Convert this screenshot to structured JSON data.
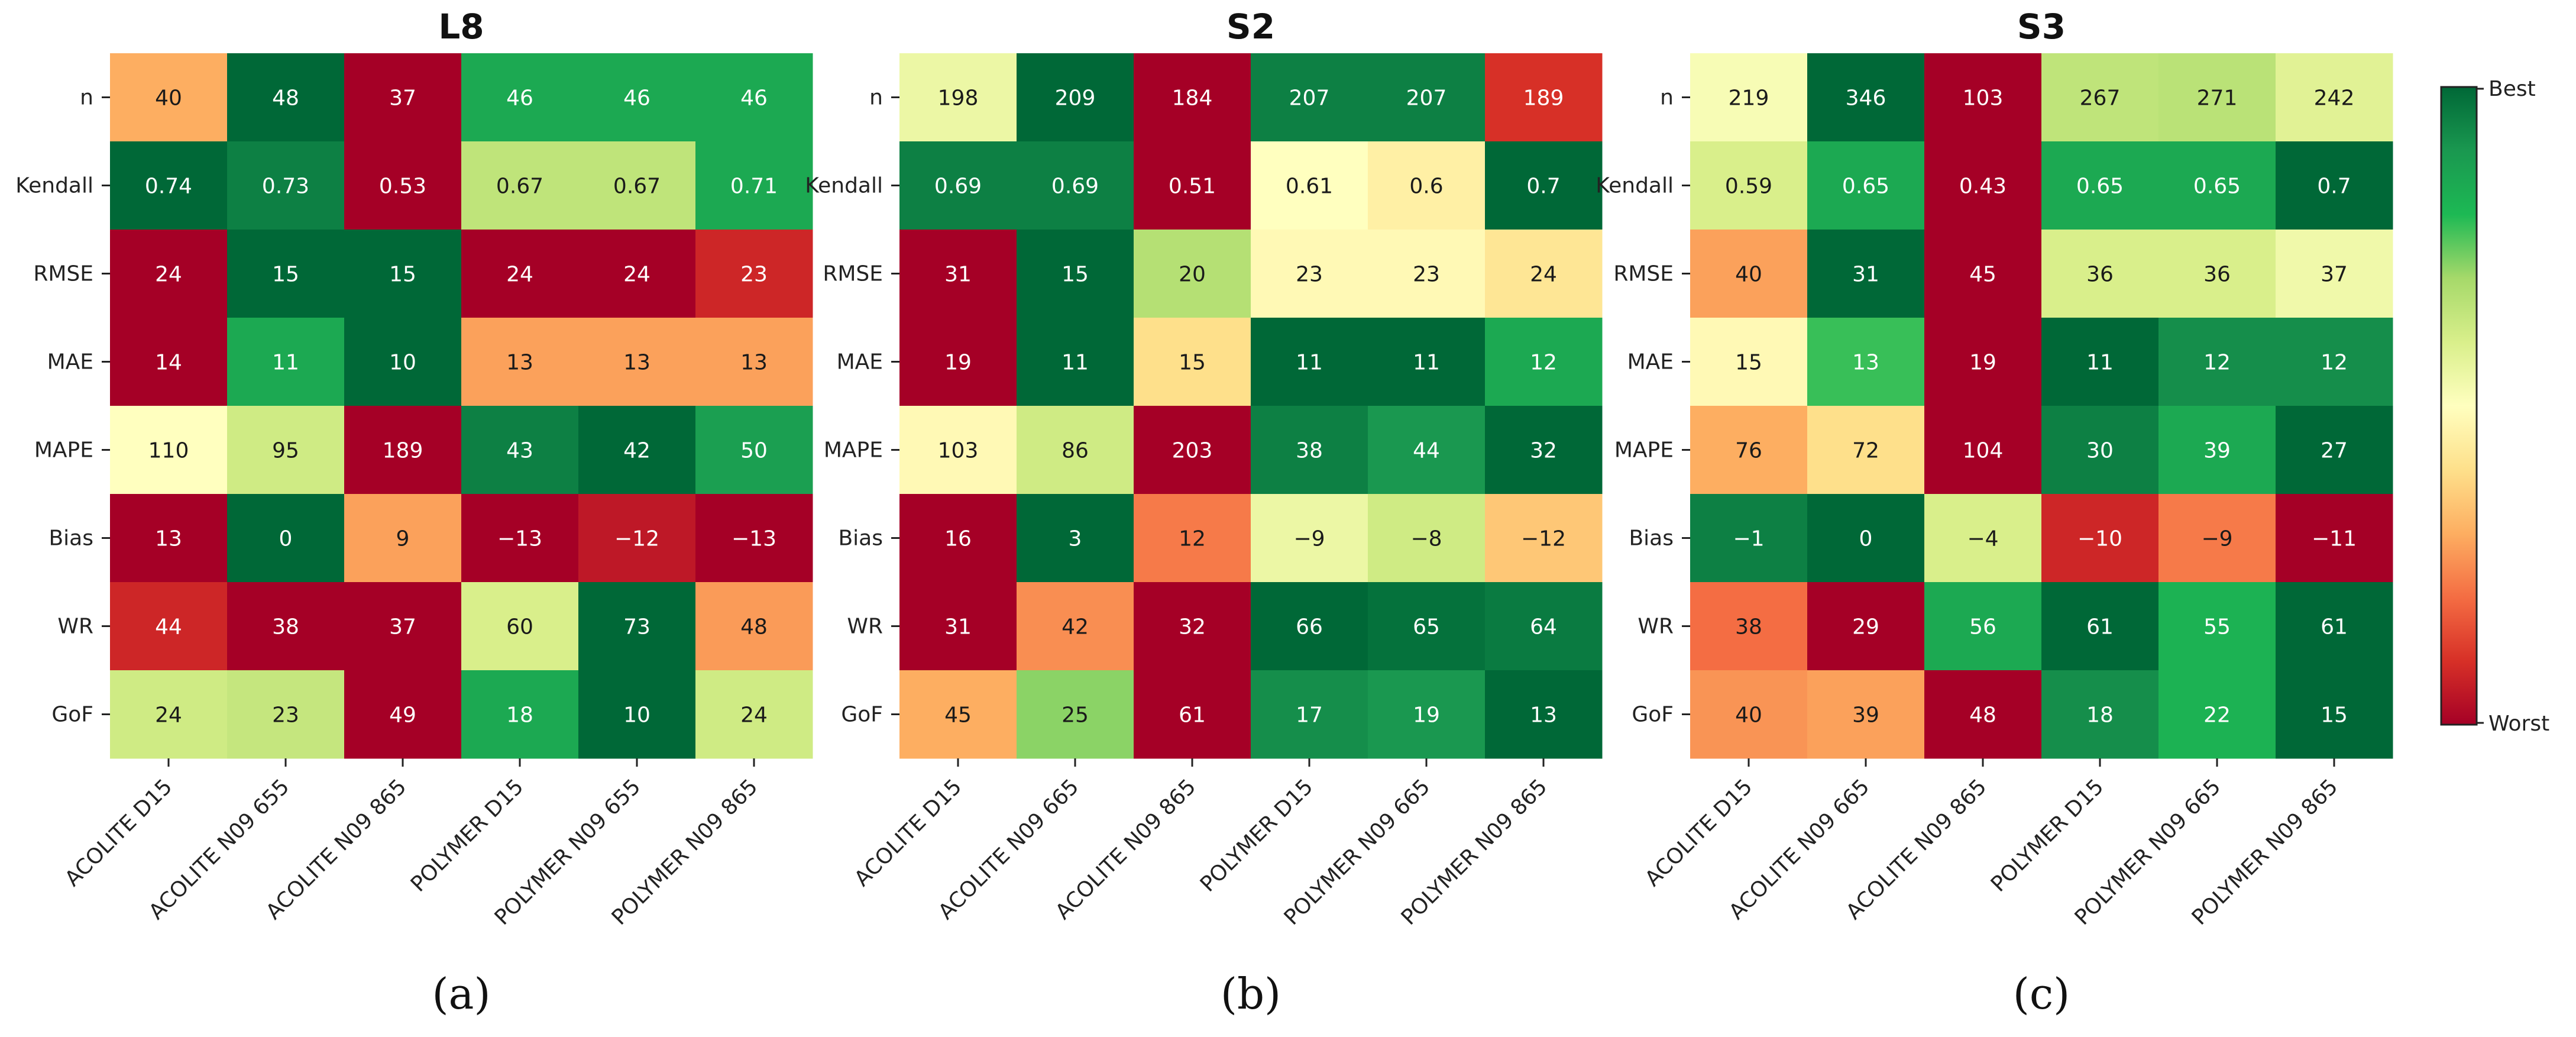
{
  "colorbar": {
    "top_label": "Best",
    "bottom_label": "Worst"
  },
  "chart_data": [
    {
      "type": "heatmap",
      "title": "L8",
      "panel_label": "(a)",
      "rows": [
        "n",
        "Kendall",
        "RMSE",
        "MAE",
        "MAPE",
        "Bias",
        "WR",
        "GoF"
      ],
      "columns": [
        "ACOLITE D15",
        "ACOLITE N09 655",
        "ACOLITE N09 865",
        "POLYMER D15",
        "POLYMER N09 655",
        "POLYMER N09 865"
      ],
      "values": [
        [
          "40",
          "48",
          "37",
          "46",
          "46",
          "46"
        ],
        [
          "0.74",
          "0.73",
          "0.53",
          "0.67",
          "0.67",
          "0.71"
        ],
        [
          "24",
          "15",
          "15",
          "24",
          "24",
          "23"
        ],
        [
          "14",
          "11",
          "10",
          "13",
          "13",
          "13"
        ],
        [
          "110",
          "95",
          "189",
          "43",
          "42",
          "50"
        ],
        [
          "13",
          "0",
          "9",
          "−13",
          "−12",
          "−13"
        ],
        [
          "44",
          "38",
          "37",
          "60",
          "73",
          "48"
        ],
        [
          "24",
          "23",
          "49",
          "18",
          "10",
          "24"
        ]
      ],
      "scores": [
        [
          0.3,
          1.0,
          0.0,
          0.85,
          0.85,
          0.85
        ],
        [
          1.0,
          0.95,
          0.0,
          0.65,
          0.65,
          0.85
        ],
        [
          0.0,
          1.0,
          1.0,
          0.0,
          0.0,
          0.08
        ],
        [
          0.0,
          0.85,
          1.0,
          0.28,
          0.28,
          0.28
        ],
        [
          0.5,
          0.62,
          0.0,
          0.95,
          1.0,
          0.88
        ],
        [
          0.0,
          1.0,
          0.28,
          0.0,
          0.05,
          0.0
        ],
        [
          0.08,
          0.0,
          0.0,
          0.6,
          1.0,
          0.27
        ],
        [
          0.62,
          0.64,
          0.0,
          0.85,
          1.0,
          0.62
        ]
      ]
    },
    {
      "type": "heatmap",
      "title": "S2",
      "panel_label": "(b)",
      "rows": [
        "n",
        "Kendall",
        "RMSE",
        "MAE",
        "MAPE",
        "Bias",
        "WR",
        "GoF"
      ],
      "columns": [
        "ACOLITE D15",
        "ACOLITE N09 665",
        "ACOLITE N09 865",
        "POLYMER D15",
        "POLYMER N09 665",
        "POLYMER N09 865"
      ],
      "values": [
        [
          "198",
          "209",
          "184",
          "207",
          "207",
          "189"
        ],
        [
          "0.69",
          "0.69",
          "0.51",
          "0.61",
          "0.6",
          "0.7"
        ],
        [
          "31",
          "15",
          "20",
          "23",
          "23",
          "24"
        ],
        [
          "19",
          "11",
          "15",
          "11",
          "11",
          "12"
        ],
        [
          "103",
          "86",
          "203",
          "38",
          "44",
          "32"
        ],
        [
          "16",
          "3",
          "12",
          "−9",
          "−8",
          "−12"
        ],
        [
          "31",
          "42",
          "32",
          "66",
          "65",
          "64"
        ],
        [
          "45",
          "25",
          "61",
          "17",
          "19",
          "13"
        ]
      ],
      "scores": [
        [
          0.55,
          1.0,
          0.0,
          0.95,
          0.95,
          0.1
        ],
        [
          0.95,
          0.95,
          0.0,
          0.5,
          0.45,
          1.0
        ],
        [
          0.0,
          1.0,
          0.67,
          0.48,
          0.48,
          0.42
        ],
        [
          0.0,
          1.0,
          0.4,
          1.0,
          1.0,
          0.85
        ],
        [
          0.48,
          0.62,
          0.0,
          0.95,
          0.9,
          1.0
        ],
        [
          0.0,
          1.0,
          0.22,
          0.55,
          0.62,
          0.35
        ],
        [
          0.0,
          0.25,
          0.0,
          1.0,
          0.98,
          0.96
        ],
        [
          0.3,
          0.72,
          0.0,
          0.92,
          0.9,
          1.0
        ]
      ]
    },
    {
      "type": "heatmap",
      "title": "S3",
      "panel_label": "(c)",
      "rows": [
        "n",
        "Kendall",
        "RMSE",
        "MAE",
        "MAPE",
        "Bias",
        "WR",
        "GoF"
      ],
      "columns": [
        "ACOLITE D15",
        "ACOLITE N09 665",
        "ACOLITE N09 865",
        "POLYMER D15",
        "POLYMER N09 665",
        "POLYMER N09 865"
      ],
      "values": [
        [
          "219",
          "346",
          "103",
          "267",
          "271",
          "242"
        ],
        [
          "0.59",
          "0.65",
          "0.43",
          "0.65",
          "0.65",
          "0.7"
        ],
        [
          "40",
          "31",
          "45",
          "36",
          "36",
          "37"
        ],
        [
          "15",
          "13",
          "19",
          "11",
          "12",
          "12"
        ],
        [
          "76",
          "72",
          "104",
          "30",
          "39",
          "27"
        ],
        [
          "−1",
          "0",
          "−4",
          "−10",
          "−9",
          "−11"
        ],
        [
          "38",
          "29",
          "56",
          "61",
          "55",
          "61"
        ],
        [
          "40",
          "39",
          "48",
          "18",
          "22",
          "15"
        ]
      ],
      "scores": [
        [
          0.52,
          1.0,
          0.0,
          0.65,
          0.66,
          0.58
        ],
        [
          0.6,
          0.85,
          0.0,
          0.85,
          0.85,
          1.0
        ],
        [
          0.28,
          1.0,
          0.0,
          0.6,
          0.6,
          0.54
        ],
        [
          0.48,
          0.78,
          0.0,
          1.0,
          0.92,
          0.92
        ],
        [
          0.3,
          0.4,
          0.0,
          0.95,
          0.85,
          1.0
        ],
        [
          0.95,
          1.0,
          0.6,
          0.08,
          0.22,
          0.0
        ],
        [
          0.2,
          0.0,
          0.85,
          1.0,
          0.82,
          1.0
        ],
        [
          0.26,
          0.28,
          0.0,
          0.92,
          0.82,
          1.0
        ]
      ]
    }
  ]
}
